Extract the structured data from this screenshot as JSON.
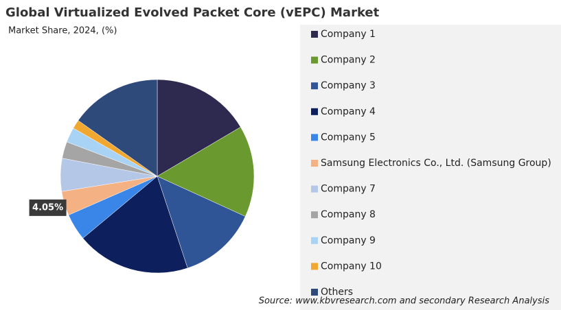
{
  "chart_data": {
    "type": "pie",
    "title": "Global Virtualized Evolved Packet Core (vEPC) Market",
    "subtitle": "Market Share, 2024, (%)",
    "source": "Source: www.kbvresearch.com and secondary Research Analysis",
    "categories": [
      "Company 1",
      "Company 2",
      "Company 3",
      "Company 4",
      "Company 5",
      "Samsung Electronics Co., Ltd. (Samsung Group)",
      "Company 7",
      "Company 8",
      "Company 9",
      "Company 10",
      "Others"
    ],
    "values": [
      16.5,
      15.3,
      13.1,
      19.0,
      4.5,
      4.05,
      5.5,
      2.8,
      2.5,
      1.5,
      15.2
    ],
    "value_labels": [
      null,
      null,
      null,
      null,
      null,
      "4.05%",
      null,
      null,
      null,
      null,
      null
    ],
    "colors": [
      "#2e2a4f",
      "#6a9a2f",
      "#2f5597",
      "#0d1f5c",
      "#3a86e8",
      "#f4b183",
      "#b4c7e7",
      "#a5a5a5",
      "#a9d3f5",
      "#f0a830",
      "#2e4a7a"
    ],
    "legend": "right"
  }
}
